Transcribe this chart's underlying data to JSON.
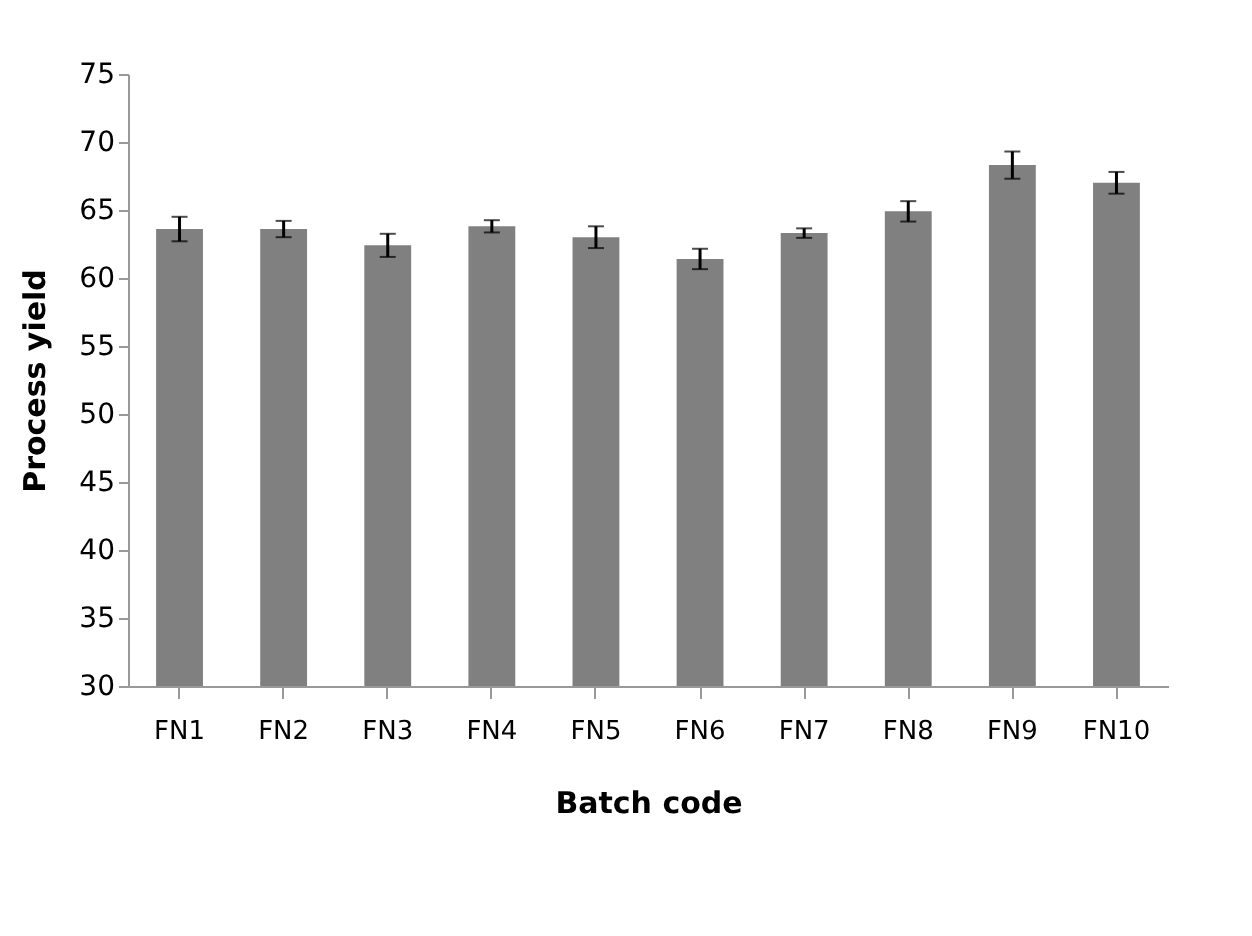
{
  "chart_data": {
    "type": "bar",
    "xlabel": "Batch code",
    "ylabel": "Process yield",
    "categories": [
      "FN1",
      "FN2",
      "FN3",
      "FN4",
      "FN5",
      "FN6",
      "FN7",
      "FN8",
      "FN9",
      "FN10"
    ],
    "values": [
      63.6,
      63.6,
      62.4,
      63.8,
      63.0,
      61.4,
      63.3,
      64.9,
      68.3,
      67.0
    ],
    "errors": [
      0.9,
      0.6,
      0.85,
      0.45,
      0.8,
      0.75,
      0.35,
      0.75,
      1.0,
      0.8
    ],
    "color": "#808080",
    "ylim": [
      30,
      75
    ],
    "yticks": [
      30,
      35,
      40,
      45,
      50,
      55,
      60,
      65,
      70,
      75
    ],
    "grid": false
  }
}
